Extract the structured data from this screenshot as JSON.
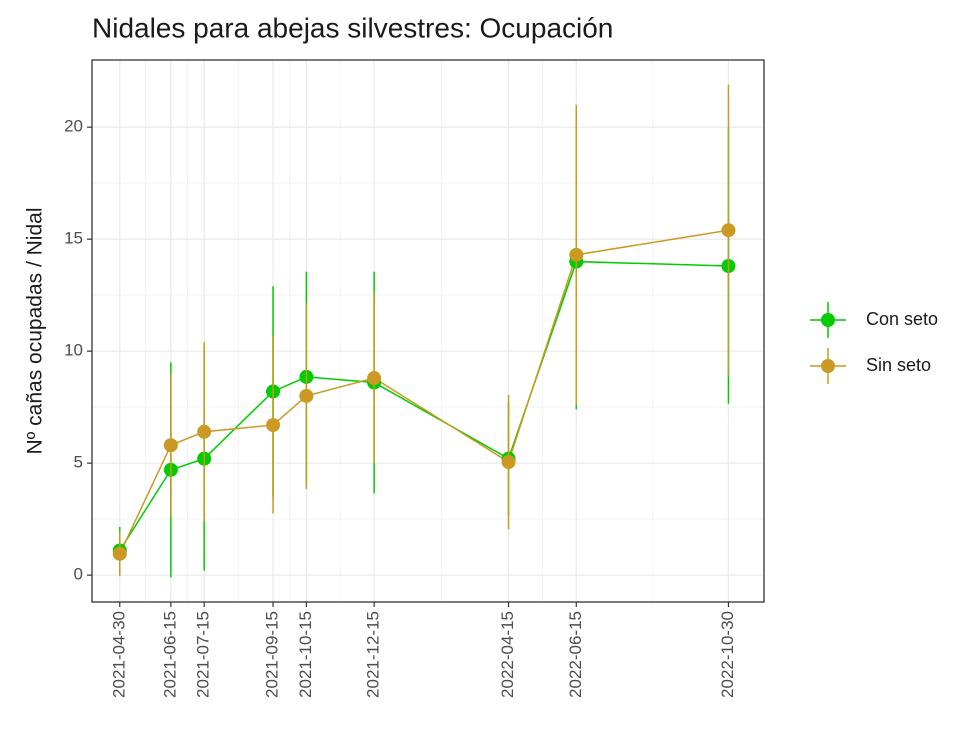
{
  "chart_data": {
    "type": "line",
    "title": "Nidales para abejas silvestres: Ocupación",
    "y_label": "Nº cañas ocupadas / Nidal",
    "x": [
      "2021-04-30",
      "2021-06-15",
      "2021-07-15",
      "2021-09-15",
      "2021-10-15",
      "2021-12-15",
      "2022-04-15",
      "2022-06-15",
      "2022-10-30"
    ],
    "series": [
      {
        "name": "Con seto",
        "color": "#00cc00",
        "values": [
          1.1,
          4.7,
          5.2,
          8.2,
          8.85,
          8.6,
          5.2,
          14.0,
          13.8
        ],
        "errors": [
          1.05,
          4.8,
          5.0,
          4.7,
          4.7,
          4.95,
          2.5,
          6.6,
          6.15
        ]
      },
      {
        "name": "Sin seto",
        "color": "#cc9922",
        "values": [
          0.95,
          5.8,
          6.4,
          6.7,
          8.0,
          8.8,
          5.05,
          14.3,
          15.4
        ],
        "errors": [
          1.0,
          3.2,
          4.0,
          3.95,
          4.15,
          3.8,
          3.0,
          6.7,
          6.5
        ]
      }
    ],
    "xlim": [
      "2021-04-05",
      "2022-12-01"
    ],
    "xticks": [
      "2021-04-30",
      "2021-06-15",
      "2021-07-15",
      "2021-09-15",
      "2021-10-15",
      "2021-12-15",
      "2022-04-15",
      "2022-06-15",
      "2022-10-30"
    ],
    "ylim": [
      -1.2,
      23.0
    ],
    "yticks": [
      0,
      5,
      10,
      15,
      20
    ],
    "grid": true
  }
}
